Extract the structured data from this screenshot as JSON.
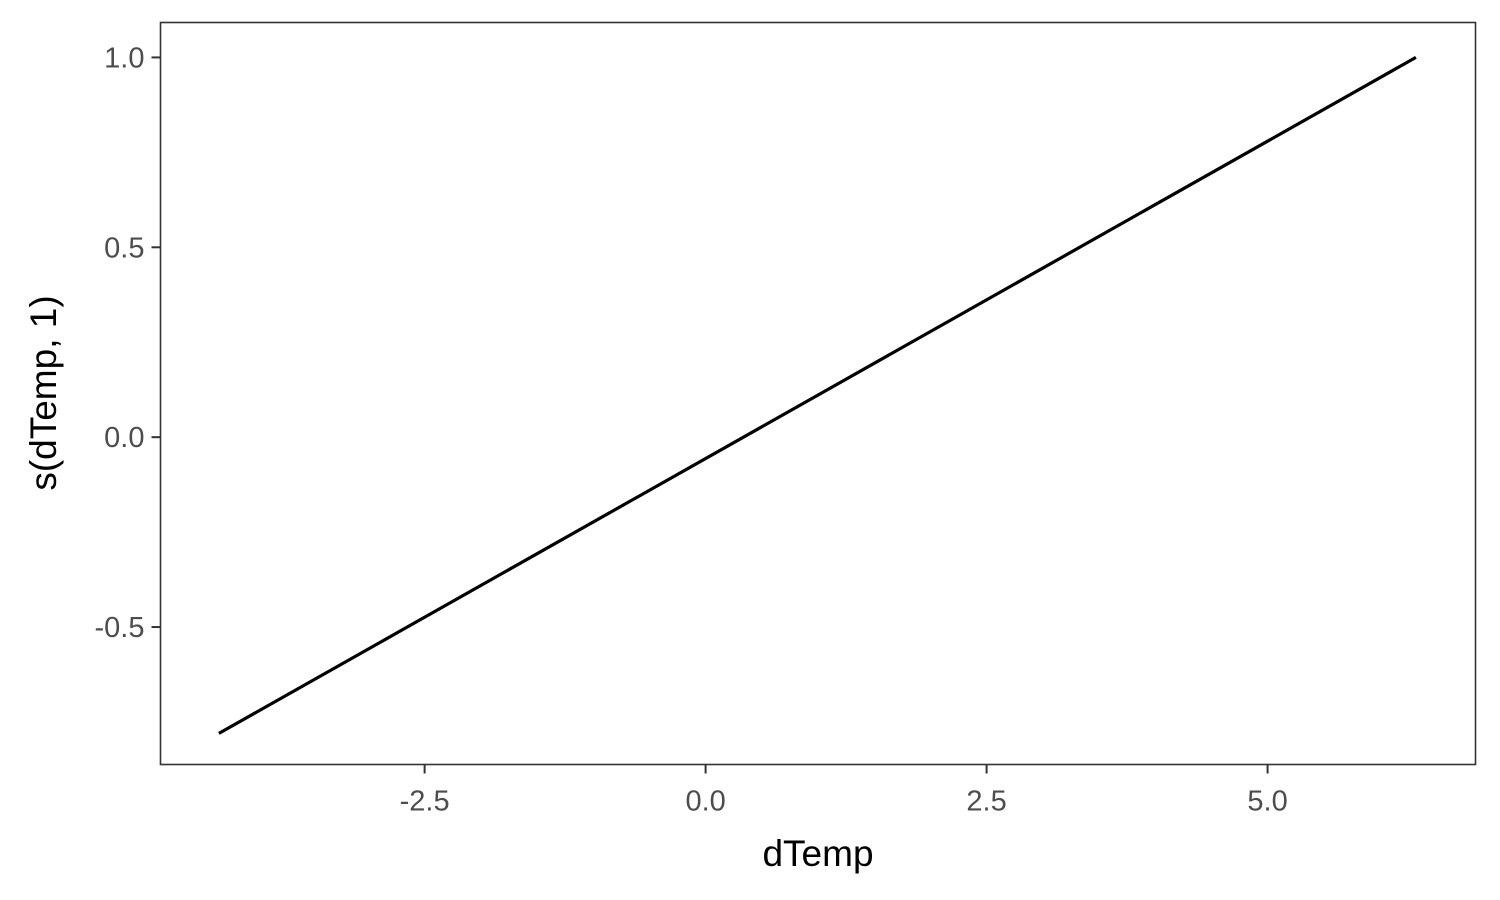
{
  "chart_data": {
    "type": "line",
    "xlabel": "dTemp",
    "ylabel": "s(dTemp, 1)",
    "xlim": [
      -4.85,
      6.85
    ],
    "ylim": [
      -0.862,
      1.092
    ],
    "x_ticks": [
      -2.5,
      0.0,
      2.5,
      5.0
    ],
    "x_tick_labels": [
      "-2.5",
      "0.0",
      "2.5",
      "5.0"
    ],
    "y_ticks": [
      -0.5,
      0.0,
      0.5,
      1.0
    ],
    "y_tick_labels": [
      "-0.5",
      "0.0",
      "0.5",
      "1.0"
    ],
    "grid": false,
    "series": [
      {
        "x": [
          -4.33,
          6.32
        ],
        "y": [
          -0.78,
          1.0
        ]
      }
    ],
    "colors": {
      "line": "#000000",
      "panel_border": "#333333",
      "tick": "#333333"
    }
  }
}
